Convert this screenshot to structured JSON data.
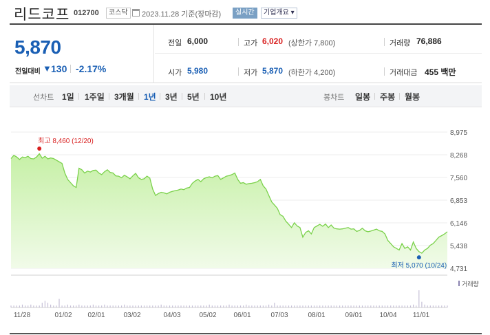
{
  "header": {
    "name": "리드코프",
    "code": "012700",
    "market": "코스닥",
    "date": "2023.11.28 기준(장마감)",
    "live_badge": "실시간",
    "info_button": "기업개요 ▾"
  },
  "summary": {
    "price": "5,870",
    "change_label": "전일대비",
    "change_arrow": "▼",
    "change_value": "130",
    "change_pct": "-2.17%",
    "stats": {
      "prev_close": {
        "label": "전일",
        "value": "6,000"
      },
      "high": {
        "label": "고가",
        "value": "6,020",
        "sub": "(상한가 7,800)"
      },
      "volume": {
        "label": "거래량",
        "value": "76,886"
      },
      "open": {
        "label": "시가",
        "value": "5,980"
      },
      "low": {
        "label": "저가",
        "value": "5,870",
        "sub": "(하한가 4,200)"
      },
      "trade_value": {
        "label": "거래대금",
        "value": "455 백만"
      }
    }
  },
  "period_bar": {
    "line_label": "선차트",
    "periods": [
      "1일",
      "1주일",
      "3개월",
      "1년",
      "3년",
      "5년",
      "10년"
    ],
    "active_period": "1년",
    "candle_label": "봉차트",
    "candle_periods": [
      "일봉",
      "주봉",
      "월봉"
    ]
  },
  "colors": {
    "accent_blue": "#1a5fb4",
    "up_red": "#d81e1e",
    "line_green": "#7ad14a",
    "fill_green": "#d8f5c2",
    "volume_bar": "#c5bfd6"
  },
  "chart_data": {
    "type": "area",
    "ylim": [
      4731,
      8975
    ],
    "y_ticks": [
      "8,975",
      "8,268",
      "7,560",
      "6,853",
      "6,146",
      "5,438",
      "4,731"
    ],
    "x_ticks": [
      "11/28",
      "01/02",
      "02/01",
      "03/02",
      "04/03",
      "05/02",
      "06/01",
      "07/03",
      "08/01",
      "09/01",
      "10/04",
      "11/01"
    ],
    "high_annotation": {
      "label": "최고 8,460 (12/20)",
      "value": 8460,
      "index": 10
    },
    "low_annotation": {
      "label": "최저 5,070 (10/24)",
      "value": 5070,
      "index": 144
    },
    "volume_legend": "거래량",
    "values": [
      8150,
      8250,
      8200,
      8120,
      8200,
      8180,
      8220,
      8150,
      8140,
      8200,
      8300,
      8160,
      8220,
      8140,
      8170,
      8150,
      8100,
      8050,
      8000,
      7700,
      7500,
      7400,
      7300,
      7250,
      7850,
      7800,
      7700,
      7760,
      7730,
      7780,
      7790,
      7700,
      7650,
      7740,
      7800,
      7720,
      7700,
      7610,
      7600,
      7550,
      7630,
      7580,
      7520,
      7610,
      7690,
      7550,
      7500,
      7520,
      7600,
      7540,
      7200,
      7000,
      7060,
      7100,
      7080,
      7050,
      7100,
      7130,
      7150,
      7170,
      7200,
      7180,
      7230,
      7250,
      7380,
      7450,
      7500,
      7430,
      7520,
      7560,
      7580,
      7550,
      7600,
      7620,
      7500,
      7550,
      7600,
      7620,
      7650,
      7700,
      7500,
      7380,
      7400,
      7350,
      7370,
      7380,
      7400,
      7430,
      7500,
      7300,
      7200,
      7000,
      6800,
      6700,
      6600,
      6400,
      6350,
      6200,
      6100,
      6000,
      6150,
      6050,
      6000,
      5700,
      5850,
      5900,
      5800,
      6000,
      6050,
      6100,
      6040,
      6110,
      6000,
      6080,
      5980,
      5960,
      5950,
      5960,
      5980,
      6000,
      5950,
      5960,
      5880,
      5910,
      5980,
      5900,
      5870,
      5890,
      5920,
      5950,
      5900,
      5880,
      5800,
      5600,
      5500,
      5400,
      5350,
      5300,
      5500,
      5350,
      5400,
      5300,
      5550,
      5350,
      5250,
      5200,
      5300,
      5350,
      5450,
      5500,
      5600,
      5700,
      5750,
      5800,
      5870
    ],
    "volume": [
      2,
      2,
      2,
      2,
      3,
      2,
      2,
      3,
      2,
      2,
      2,
      5,
      7,
      5,
      3,
      2,
      2,
      9,
      2,
      2,
      3,
      2,
      2,
      2,
      3,
      2,
      2,
      2,
      2,
      3,
      2,
      2,
      2,
      3,
      2,
      2,
      2,
      2,
      2,
      2,
      3,
      2,
      2,
      2,
      2,
      2,
      2,
      2,
      2,
      2,
      2,
      2,
      2,
      3,
      2,
      2,
      2,
      2,
      2,
      2,
      2,
      2,
      2,
      2,
      2,
      2,
      2,
      2,
      2,
      2,
      3,
      2,
      2,
      2,
      2,
      2,
      2,
      3,
      2,
      2,
      2,
      2,
      2,
      3,
      2,
      2,
      2,
      2,
      2,
      2,
      2,
      3,
      2,
      5,
      2,
      2,
      2,
      2,
      2,
      2,
      2,
      2,
      2,
      2,
      2,
      2,
      2,
      2,
      2,
      2,
      2,
      2,
      2,
      2,
      2,
      2,
      2,
      2,
      2,
      2,
      2,
      2,
      2,
      2,
      2,
      2,
      2,
      2,
      2,
      2,
      2,
      2,
      2,
      2,
      2,
      2,
      2,
      2,
      2,
      2,
      2,
      2,
      3,
      2,
      18,
      6,
      3,
      2,
      2,
      2,
      2,
      2,
      2,
      2,
      2
    ]
  }
}
